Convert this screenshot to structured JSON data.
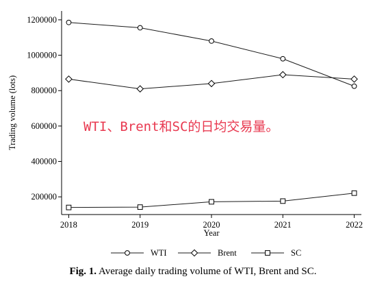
{
  "chart_data": {
    "type": "line",
    "title": "",
    "xlabel": "Year",
    "ylabel": "Trading volume (lots)",
    "x": [
      2018,
      2019,
      2020,
      2021,
      2022
    ],
    "xlim": [
      2018,
      2022
    ],
    "ylim": [
      100000,
      1250000
    ],
    "yticks": [
      200000,
      400000,
      600000,
      800000,
      1000000,
      1200000
    ],
    "grid": false,
    "legend_position": "bottom",
    "series": [
      {
        "name": "WTI",
        "marker": "circle",
        "values": [
          1185000,
          1155000,
          1080000,
          980000,
          825000
        ]
      },
      {
        "name": "Brent",
        "marker": "diamond",
        "values": [
          865000,
          810000,
          840000,
          890000,
          865000
        ]
      },
      {
        "name": "SC",
        "marker": "square",
        "values": [
          140000,
          142000,
          172000,
          176000,
          221000
        ]
      }
    ],
    "annotation": {
      "text": "WTI、Brent和SC的日均交易量。",
      "color": "#e8384f"
    }
  },
  "caption": {
    "label": "Fig. 1.",
    "text": "Average daily trading volume of WTI, Brent and SC."
  }
}
